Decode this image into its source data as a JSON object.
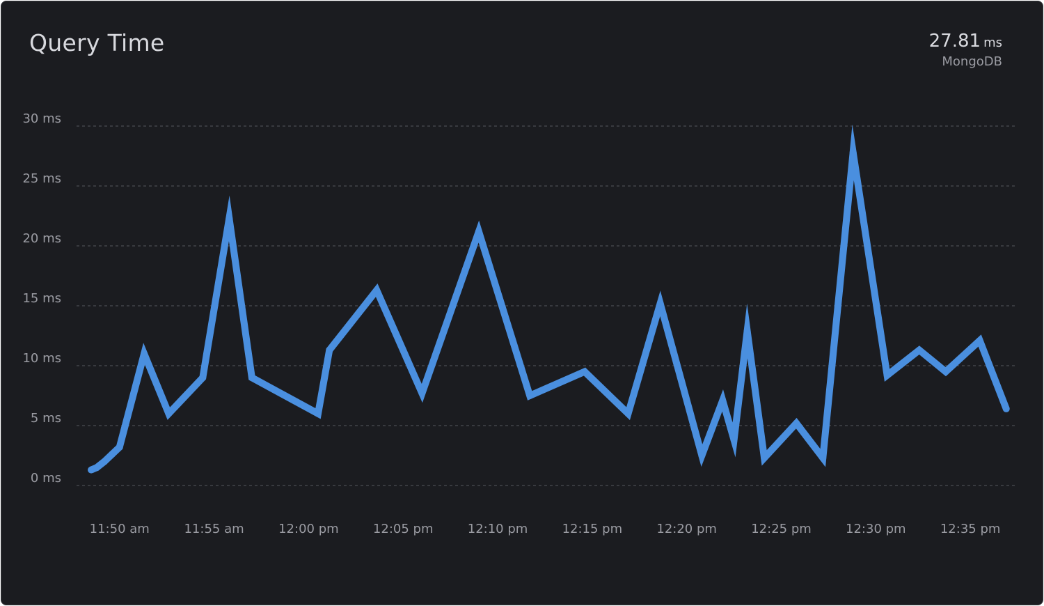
{
  "panel": {
    "title": "Query Time",
    "metric": {
      "value": "27.81",
      "unit": "ms",
      "source": "MongoDB"
    }
  },
  "colors": {
    "background": "#1b1c20",
    "line": "#4a8fdf",
    "grid": "#55575e",
    "text": "#d8d9de",
    "muted_text": "#9a9ba2"
  },
  "chart_data": {
    "type": "line",
    "title": "Query Time",
    "xlabel": "",
    "ylabel": "",
    "ylim": [
      0,
      30
    ],
    "xlim": [
      "11:48:30",
      "12:37:10"
    ],
    "grid": true,
    "y_ticks": [
      {
        "value": 0,
        "label": "0 ms"
      },
      {
        "value": 5,
        "label": "5 ms"
      },
      {
        "value": 10,
        "label": "10 ms"
      },
      {
        "value": 15,
        "label": "15 ms"
      },
      {
        "value": 20,
        "label": "20 ms"
      },
      {
        "value": 25,
        "label": "25 ms"
      },
      {
        "value": 30,
        "label": "30 ms"
      }
    ],
    "x_ticks": [
      {
        "time": "11:50",
        "label": "11:50 am"
      },
      {
        "time": "11:55",
        "label": "11:55 am"
      },
      {
        "time": "12:00",
        "label": "12:00 pm"
      },
      {
        "time": "12:05",
        "label": "12:05 pm"
      },
      {
        "time": "12:10",
        "label": "12:10 pm"
      },
      {
        "time": "12:15",
        "label": "12:15 pm"
      },
      {
        "time": "12:20",
        "label": "12:20 pm"
      },
      {
        "time": "12:25",
        "label": "12:25 pm"
      },
      {
        "time": "12:30",
        "label": "12:30 pm"
      },
      {
        "time": "12:35",
        "label": "12:35 pm"
      }
    ],
    "series": [
      {
        "color": "#4a8fdf",
        "points": [
          {
            "x": "11:48:30",
            "y": 1.3
          },
          {
            "x": "11:48:48",
            "y": 1.5
          },
          {
            "x": "11:49:12",
            "y": 2.0
          },
          {
            "x": "11:49:36",
            "y": 2.6
          },
          {
            "x": "11:50:00",
            "y": 3.2
          },
          {
            "x": "11:51:18",
            "y": 11.0
          },
          {
            "x": "11:52:36",
            "y": 6.0
          },
          {
            "x": "11:54:24",
            "y": 9.0
          },
          {
            "x": "11:55:48",
            "y": 22.3
          },
          {
            "x": "11:57:00",
            "y": 9.0
          },
          {
            "x": "12:00:30",
            "y": 6.0
          },
          {
            "x": "12:01:06",
            "y": 11.3
          },
          {
            "x": "12:03:36",
            "y": 16.3
          },
          {
            "x": "12:06:00",
            "y": 7.7
          },
          {
            "x": "12:09:00",
            "y": 21.2
          },
          {
            "x": "12:11:42",
            "y": 7.5
          },
          {
            "x": "12:14:36",
            "y": 9.5
          },
          {
            "x": "12:16:54",
            "y": 6.0
          },
          {
            "x": "12:18:36",
            "y": 15.2
          },
          {
            "x": "12:20:48",
            "y": 2.5
          },
          {
            "x": "12:21:54",
            "y": 7.1
          },
          {
            "x": "12:22:30",
            "y": 3.8
          },
          {
            "x": "12:23:12",
            "y": 12.9
          },
          {
            "x": "12:24:06",
            "y": 2.3
          },
          {
            "x": "12:25:48",
            "y": 5.2
          },
          {
            "x": "12:27:12",
            "y": 2.3
          },
          {
            "x": "12:28:48",
            "y": 27.8
          },
          {
            "x": "12:30:36",
            "y": 9.2
          },
          {
            "x": "12:32:18",
            "y": 11.3
          },
          {
            "x": "12:33:42",
            "y": 9.5
          },
          {
            "x": "12:35:30",
            "y": 12.1
          },
          {
            "x": "12:36:54",
            "y": 6.4
          }
        ]
      }
    ]
  }
}
